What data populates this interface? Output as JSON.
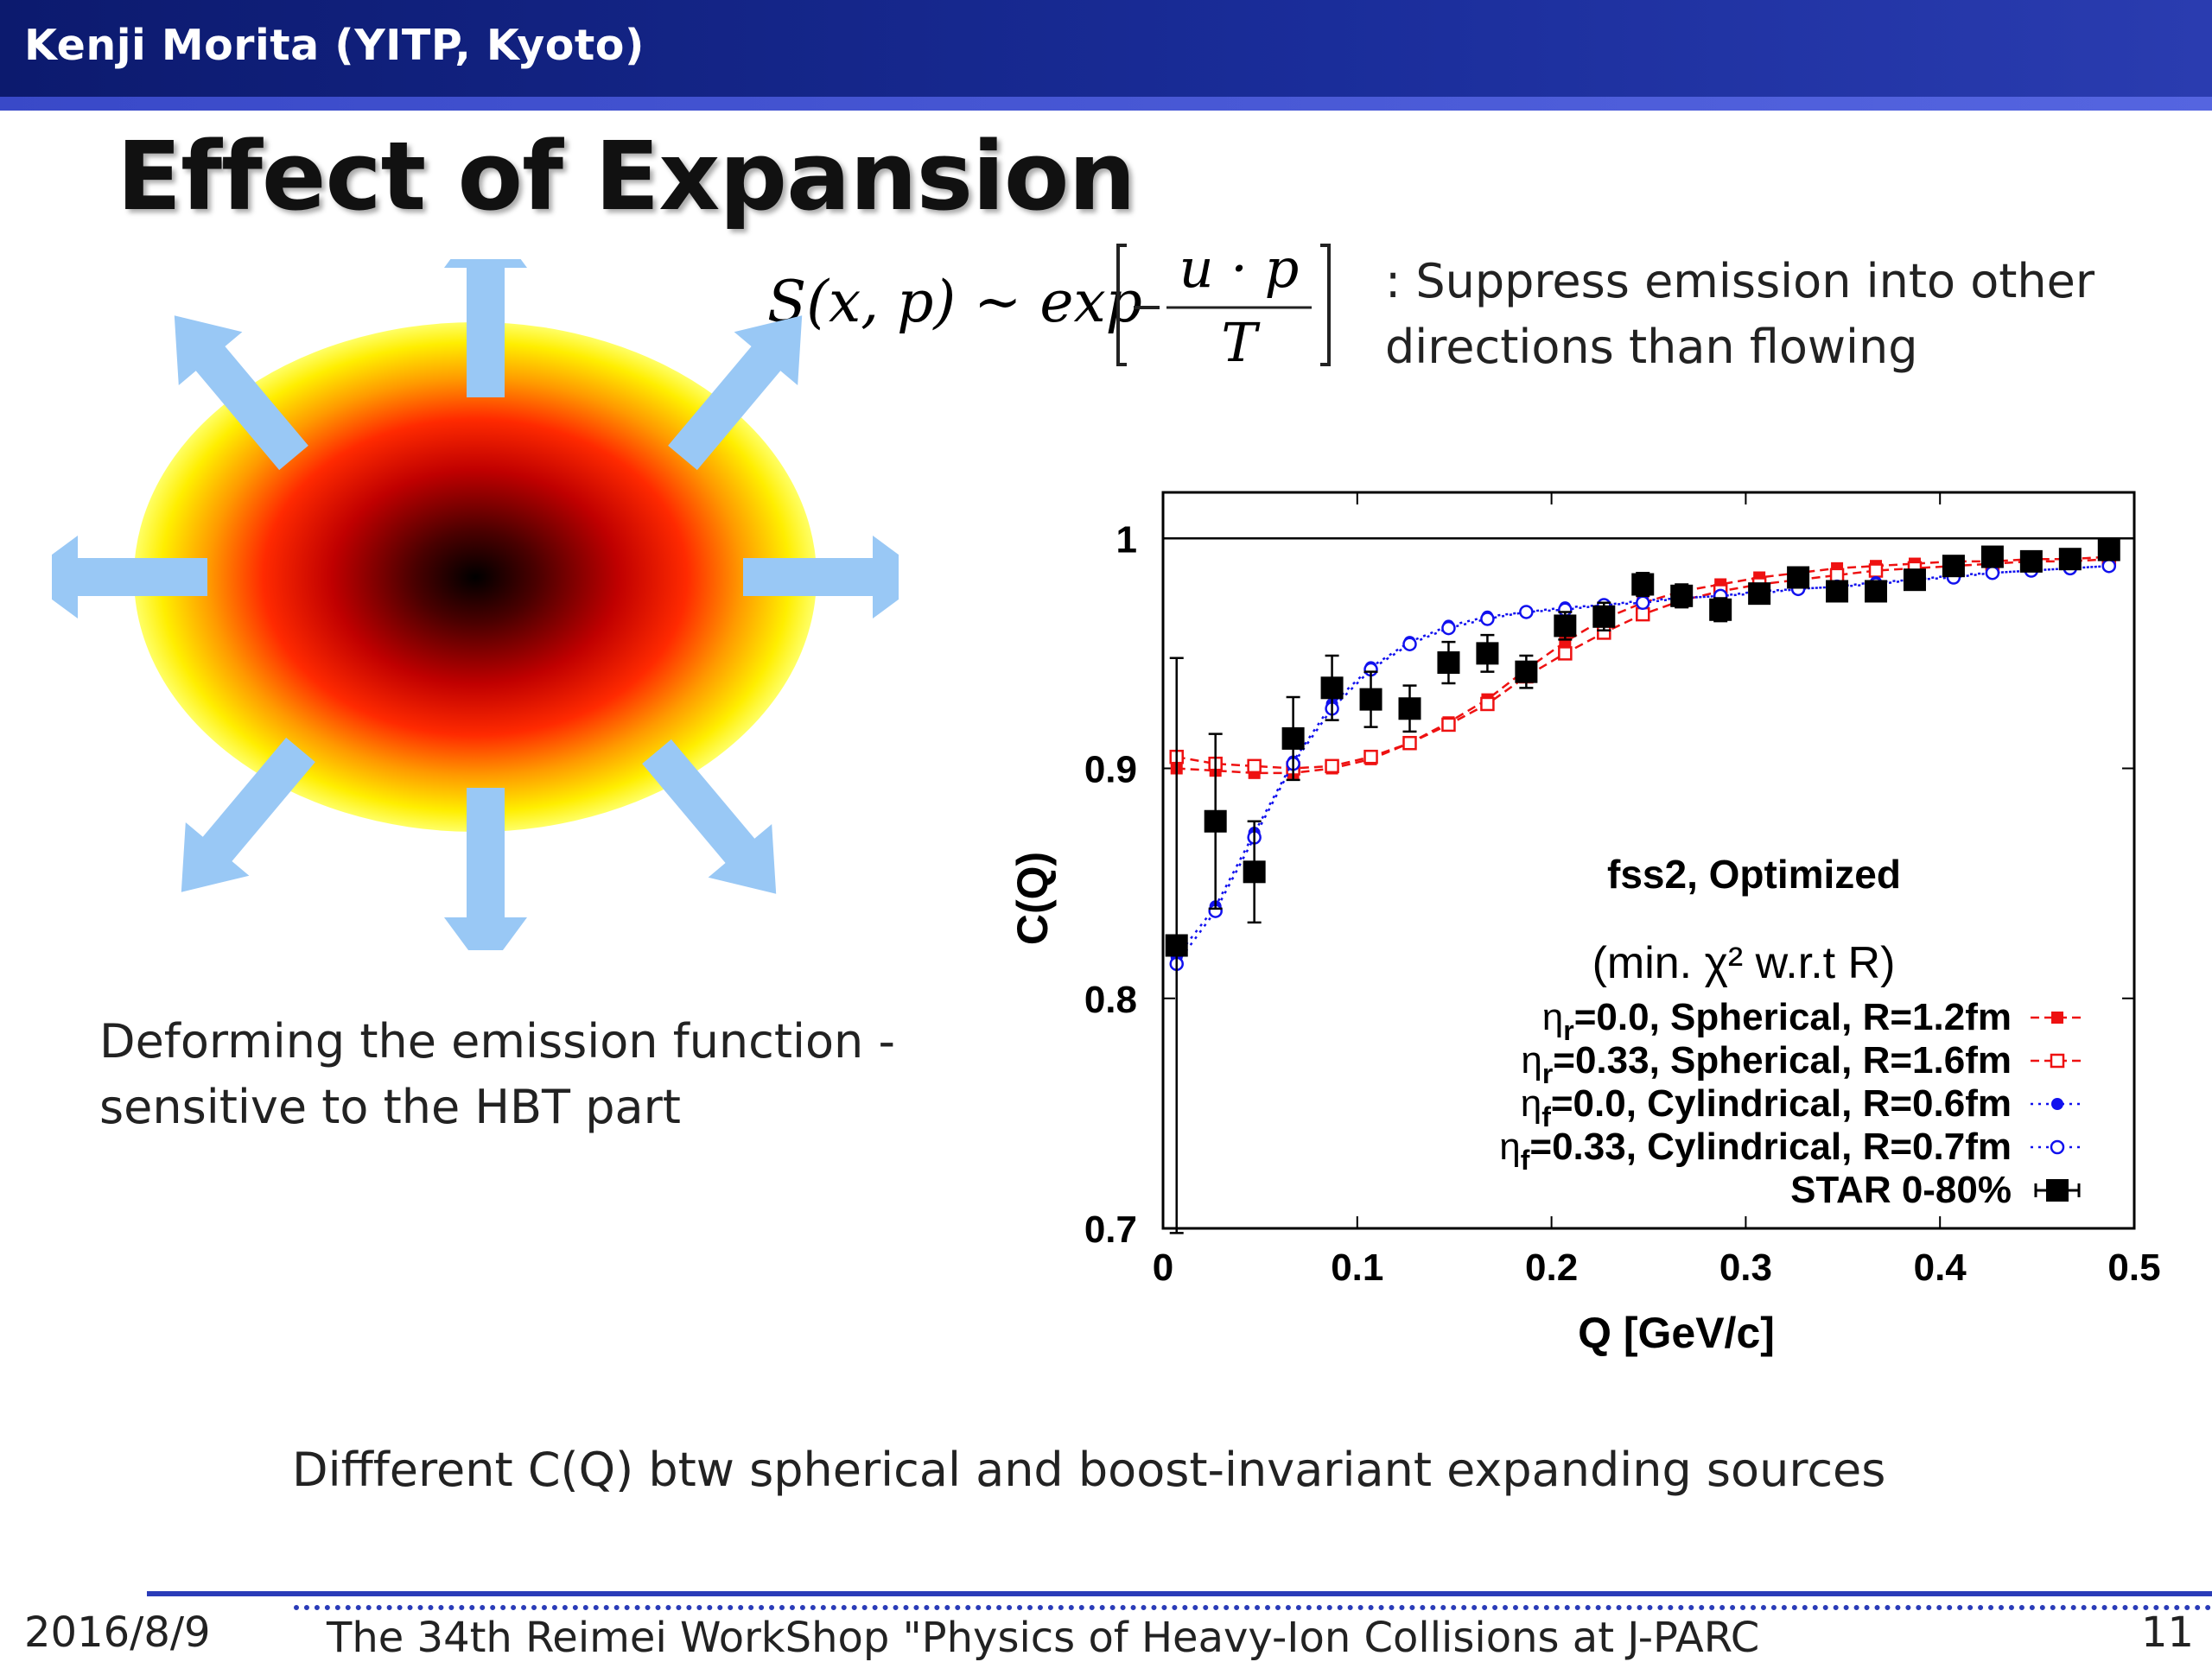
{
  "header": {
    "presenter": "Kenji Morita (YITP, Kyoto)"
  },
  "slide": {
    "title": "Effect of Expansion",
    "formula": "S(x, p) ~ exp[ −u·p / T ]",
    "formula_lhs": "S(x, p) ~ exp",
    "formula_num": "u · p",
    "formula_den": "T",
    "note_line1": ": Suppress emission into other",
    "note_line2": "directions than flowing",
    "caption_line1": "Deforming the emission function  -",
    "caption_line2": "sensitive to the HBT part",
    "bottom_text": "Diffferent C(Q) btw spherical and boost-invariant expanding sources"
  },
  "footer": {
    "date": "2016/8/9",
    "conference": "The 34th Reimei WorkShop \"Physics of Heavy-Ion Collisions at J-PARC",
    "page": "11"
  },
  "chart_data": {
    "type": "scatter",
    "xlabel": "Q [GeV/c]",
    "ylabel": "C(Q)",
    "xlim": [
      0,
      0.5
    ],
    "ylim": [
      0.7,
      1.02
    ],
    "xticks": [
      "0",
      "0.1",
      "0.2",
      "0.3",
      "0.4",
      "0.5"
    ],
    "yticks": [
      "0.7",
      "0.8",
      "0.9",
      "1"
    ],
    "annotation_title": "fss2, Optimized",
    "annotation_sub": "(min. χ² w.r.t R)",
    "reference_line": 1,
    "legend_position": "bottom-right",
    "series": [
      {
        "name": "ηr=0.0, Spherical, R=1.2fm",
        "color": "#ee1111",
        "marker": "filled-square",
        "line": "dashed",
        "x": [
          0.007,
          0.027,
          0.047,
          0.067,
          0.087,
          0.107,
          0.127,
          0.147,
          0.167,
          0.187,
          0.207,
          0.227,
          0.247,
          0.267,
          0.287,
          0.307,
          0.327,
          0.347,
          0.367,
          0.387,
          0.407,
          0.427,
          0.447,
          0.467,
          0.487
        ],
        "y": [
          0.9,
          0.899,
          0.898,
          0.898,
          0.9,
          0.904,
          0.911,
          0.92,
          0.93,
          0.943,
          0.955,
          0.965,
          0.972,
          0.977,
          0.98,
          0.983,
          0.985,
          0.987,
          0.988,
          0.989,
          0.99,
          0.99,
          0.991,
          0.991,
          0.992
        ]
      },
      {
        "name": "ηr=0.33, Spherical, R=1.6fm",
        "color": "#ee1111",
        "marker": "open-square",
        "line": "dashed",
        "x": [
          0.007,
          0.027,
          0.047,
          0.067,
          0.087,
          0.107,
          0.127,
          0.147,
          0.167,
          0.187,
          0.207,
          0.227,
          0.247,
          0.267,
          0.287,
          0.307,
          0.327,
          0.347,
          0.367,
          0.387,
          0.407,
          0.427,
          0.447,
          0.467,
          0.487
        ],
        "y": [
          0.905,
          0.902,
          0.901,
          0.9,
          0.901,
          0.905,
          0.911,
          0.919,
          0.928,
          0.94,
          0.95,
          0.959,
          0.967,
          0.973,
          0.977,
          0.98,
          0.982,
          0.984,
          0.986,
          0.987,
          0.988,
          0.989,
          0.99,
          0.99,
          0.991
        ]
      },
      {
        "name": "ηf=0.0, Cylindrical, R=0.6fm",
        "color": "#1111ee",
        "marker": "filled-circle",
        "line": "dotted",
        "x": [
          0.007,
          0.027,
          0.047,
          0.067,
          0.087,
          0.107,
          0.127,
          0.147,
          0.167,
          0.187,
          0.207,
          0.227,
          0.247,
          0.267,
          0.287,
          0.307,
          0.327,
          0.347,
          0.367,
          0.387,
          0.407,
          0.427,
          0.447,
          0.467,
          0.487
        ],
        "y": [
          0.818,
          0.84,
          0.872,
          0.903,
          0.928,
          0.944,
          0.955,
          0.962,
          0.966,
          0.968,
          0.97,
          0.971,
          0.973,
          0.974,
          0.975,
          0.977,
          0.978,
          0.979,
          0.981,
          0.982,
          0.984,
          0.985,
          0.986,
          0.987,
          0.988
        ]
      },
      {
        "name": "ηf=0.33, Cylindrical, R=0.7fm",
        "color": "#1111ee",
        "marker": "open-circle",
        "line": "dotted",
        "x": [
          0.007,
          0.027,
          0.047,
          0.067,
          0.087,
          0.107,
          0.127,
          0.147,
          0.167,
          0.187,
          0.207,
          0.227,
          0.247,
          0.267,
          0.287,
          0.307,
          0.327,
          0.347,
          0.367,
          0.387,
          0.407,
          0.427,
          0.447,
          0.467,
          0.487
        ],
        "y": [
          0.815,
          0.838,
          0.87,
          0.902,
          0.926,
          0.943,
          0.954,
          0.961,
          0.965,
          0.968,
          0.969,
          0.971,
          0.972,
          0.974,
          0.975,
          0.976,
          0.978,
          0.979,
          0.98,
          0.982,
          0.983,
          0.985,
          0.986,
          0.987,
          0.988
        ]
      },
      {
        "name": "STAR 0-80%",
        "color": "#000000",
        "marker": "filled-square-large",
        "line": "none",
        "x": [
          0.007,
          0.027,
          0.047,
          0.067,
          0.087,
          0.107,
          0.127,
          0.147,
          0.167,
          0.187,
          0.207,
          0.227,
          0.247,
          0.267,
          0.287,
          0.307,
          0.327,
          0.347,
          0.367,
          0.387,
          0.407,
          0.427,
          0.447,
          0.467,
          0.487
        ],
        "y": [
          0.823,
          0.877,
          0.855,
          0.913,
          0.935,
          0.93,
          0.926,
          0.946,
          0.95,
          0.942,
          0.962,
          0.966,
          0.98,
          0.975,
          0.969,
          0.976,
          0.983,
          0.977,
          0.977,
          0.982,
          0.988,
          0.992,
          0.99,
          0.991,
          0.995
        ],
        "err": [
          0.125,
          0.038,
          0.022,
          0.018,
          0.014,
          0.012,
          0.01,
          0.009,
          0.008,
          0.007,
          0.006,
          0.006,
          0.005,
          0.005,
          0.005,
          0.004,
          0.004,
          0.004,
          0.004,
          0.004,
          0.004,
          0.004,
          0.004,
          0.003,
          0.003
        ]
      }
    ],
    "legend_labels": [
      {
        "sym": "η",
        "sub": "r",
        "rest": "=0.0, Spherical, R=1.2fm"
      },
      {
        "sym": "η",
        "sub": "r",
        "rest": "=0.33, Spherical, R=1.6fm"
      },
      {
        "sym": "η",
        "sub": "f",
        "rest": "=0.0, Cylindrical, R=0.6fm"
      },
      {
        "sym": "η",
        "sub": "f",
        "rest": "=0.33, Cylindrical, R=0.7fm"
      },
      {
        "sym": "",
        "sub": "",
        "rest": "STAR 0-80%"
      }
    ]
  },
  "illustration": {
    "gradient_colors": [
      "#000000",
      "#6b0000",
      "#e00000",
      "#ff6a00",
      "#ffdd00",
      "#ffff55"
    ],
    "arrow_color": "#99c8f5",
    "arrow_directions": [
      "up",
      "up-right",
      "right",
      "down-right",
      "down",
      "down-left",
      "left",
      "up-left"
    ]
  }
}
